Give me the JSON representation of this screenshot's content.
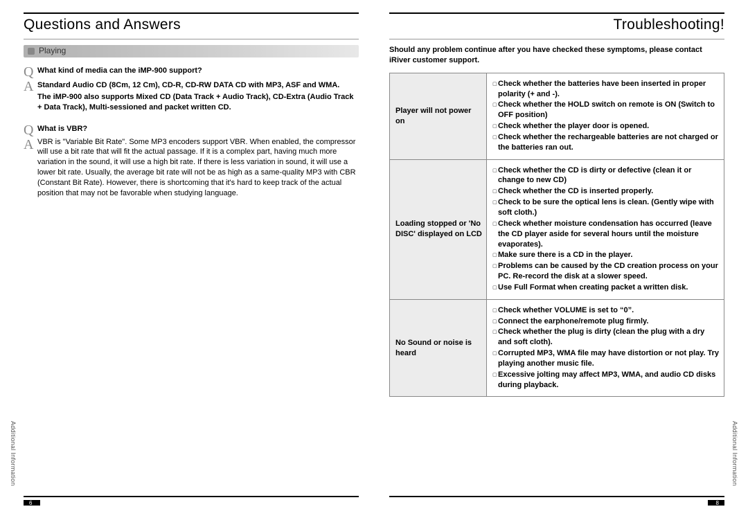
{
  "left": {
    "title": "Questions and Answers",
    "section": "Playing",
    "q1": {
      "q": "What kind of media can the iMP-900 support?",
      "a1": "Standard Audio CD (8Cm, 12 Cm), CD-R, CD-RW DATA CD with MP3, ASF and WMA.",
      "a2": "The iMP-900 also supports Mixed CD (Data Track + Audio Track), CD-Extra (Audio Track + Data Track), Multi-sessioned and packet written CD."
    },
    "q2": {
      "q": "What is VBR?",
      "a": "VBR is \"Variable Bit Rate\". Some MP3 encoders support VBR. When enabled, the compressor will use a bit rate that will fit the actual passage. If it is a complex part, having much more variation in the sound, it will use a high bit rate. If there is less variation in sound, it will use a lower bit rate. Usually, the average bit rate will not be as high as a same-quality MP3 with CBR (Constant Bit Rate). However, there is shortcoming that it's hard to keep track of the actual position that may not be favorable when studying language."
    },
    "sideLabel": "Additional Information",
    "pageNum": "6"
  },
  "right": {
    "title": "Troubleshooting!",
    "intro": "Should any problem continue after you have checked these symptoms, please contact  iRiver customer support.",
    "rows": [
      {
        "symptom": "Player will not power on",
        "solutions": [
          "Check whether the batteries have been inserted in proper polarity (+ and -).",
          "Check whether the HOLD switch on remote is ON (Switch to OFF position)",
          "Check whether the player door is opened.",
          "Check whether the rechargeable batteries are not charged or the batteries ran out."
        ]
      },
      {
        "symptom": "Loading stopped or 'No DISC' displayed on LCD",
        "solutions": [
          "Check whether the CD is dirty or defective (clean it or change to new CD)",
          "Check whether the CD is inserted properly.",
          "Check to be sure the optical lens is clean. (Gently wipe with soft cloth.)",
          "Check whether moisture condensation has occurred (leave the CD player aside for several hours until the moisture evaporates).",
          "Make sure there is a CD in the player.",
          "Problems can be caused by the CD creation process on your PC.  Re-record the disk at a slower speed.",
          "Use Full Format when creating packet a written disk."
        ]
      },
      {
        "symptom": "No Sound or noise is heard",
        "solutions": [
          "Check whether VOLUME is set to “0”.",
          "Connect the earphone/remote plug firmly.",
          "Check whether the plug is dirty (clean the plug with a dry and soft cloth).",
          "Corrupted MP3, WMA file may have distortion or not play.  Try playing another music file.",
          "Excessive jolting may affect MP3, WMA, and audio CD disks during playback."
        ]
      }
    ],
    "sideLabel": "Additional Information",
    "pageNum": "8"
  },
  "colors": {
    "rule": "#000000",
    "section_bar_start": "#b0b0b0",
    "section_bar_end": "#e8e8e8",
    "qa_letter": "#8a8a8a",
    "table_border": "#888888",
    "sym_bg": "#ececec",
    "bullet": "#888888",
    "side_text": "#555555"
  },
  "typography": {
    "hdr_fontsize": 21,
    "body_fontsize": 11,
    "qa_letter_fontsize": 20
  }
}
